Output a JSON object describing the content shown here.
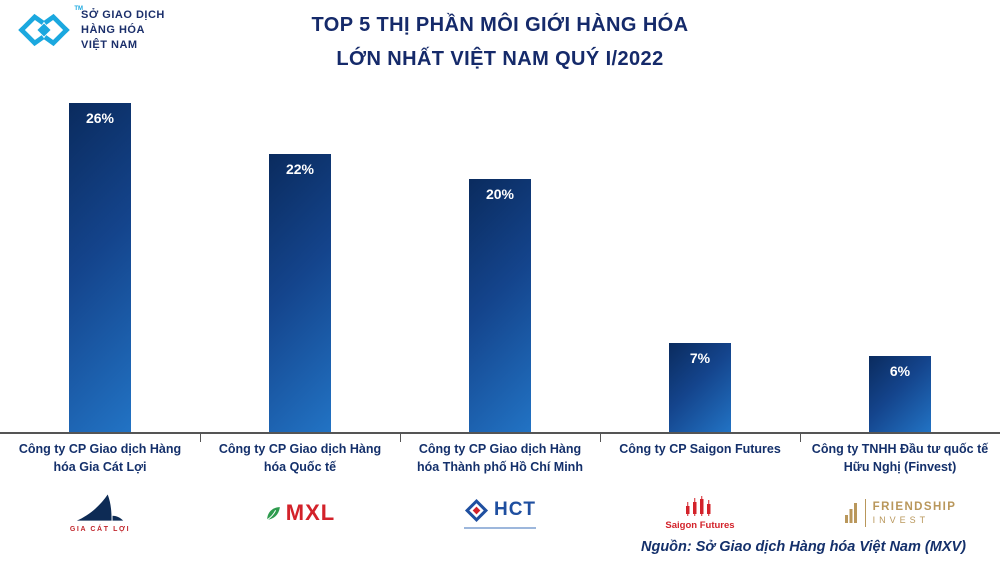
{
  "brand": {
    "tm": "TM",
    "line1": "SỞ GIAO DỊCH",
    "line2": "HÀNG HÓA",
    "line3": "VIỆT NAM"
  },
  "title": {
    "line1": "TOP 5 THỊ PHẦN MÔI GIỚI HÀNG HÓA",
    "line2": "LỚN NHẤT VIỆT NAM QUÝ I/2022"
  },
  "chart_data": {
    "type": "bar",
    "title": "TOP 5 THỊ PHẦN MÔI GIỚI HÀNG HÓA LỚN NHẤT VIỆT NAM QUÝ I/2022",
    "categories": [
      "Công ty CP Giao dịch Hàng hóa Gia Cát Lợi",
      "Công ty CP Giao dịch Hàng hóa Quốc tế",
      "Công ty CP Giao dịch Hàng hóa Thành phố Hồ Chí Minh",
      "Công ty CP Saigon Futures",
      "Công ty TNHH Đầu tư quốc tế Hữu Nghị (Finvest)"
    ],
    "values": [
      26,
      22,
      20,
      7,
      6
    ],
    "value_labels": [
      "26%",
      "22%",
      "20%",
      "7%",
      "6%"
    ],
    "xlabel": "",
    "ylabel": "",
    "ylim": [
      0,
      26
    ],
    "grid": false,
    "legend": "none",
    "bar_gradient": [
      "#0A2B5E",
      "#2273C4"
    ]
  },
  "logos": {
    "gia_cat_loi": {
      "caption": "GIA CÁT LỢI"
    },
    "mxl": {
      "text": "MXL"
    },
    "hct": {
      "text": "HCT"
    },
    "saigon_futures": {
      "caption": "Saigon Futures"
    },
    "friendship": {
      "line1": "FRIENDSHIP",
      "line2": "INVEST"
    }
  },
  "source": "Nguồn: Sở Giao dịch Hàng hóa Việt Nam (MXV)",
  "colors": {
    "navy": "#14306B",
    "teal": "#1BA8DF",
    "red": "#D3222A",
    "gold": "#B9975B"
  }
}
